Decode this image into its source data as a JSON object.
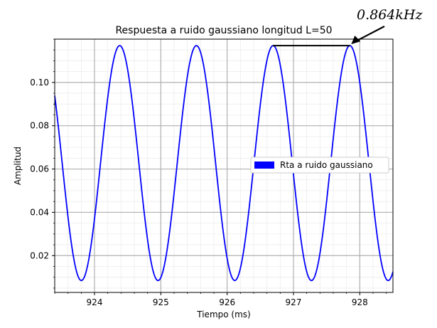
{
  "chart_data": {
    "type": "line",
    "title": "Respuesta a ruido gaussiano longitud L=50",
    "xlabel": "Tiempo (ms)",
    "ylabel": "Amplitud",
    "xlim": [
      923.4,
      928.5
    ],
    "ylim": [
      0.003,
      0.12
    ],
    "x_ticks": [
      924,
      925,
      926,
      927,
      928
    ],
    "x_tick_labels": [
      "924",
      "925",
      "926",
      "927",
      "928"
    ],
    "y_ticks": [
      0.02,
      0.04,
      0.06,
      0.08,
      0.1
    ],
    "y_tick_labels": [
      "0.02",
      "0.04",
      "0.06",
      "0.08",
      "0.10"
    ],
    "grid": true,
    "minor_grid": true,
    "legend_position": "center-right",
    "series": [
      {
        "name": "Rta a ruido gaussiano",
        "color": "#0000ff",
        "model": "sinusoid",
        "peaks_x": [
          924.38,
          925.54,
          926.69,
          927.85
        ],
        "troughs_x": [
          923.81,
          924.96,
          926.11,
          927.26,
          928.42
        ],
        "peak_y": 0.117,
        "trough_y": 0.0085
      }
    ],
    "annotation": {
      "text": "0.864kHz",
      "from_x": 926.69,
      "to_x": 927.85,
      "y": 0.117
    }
  },
  "colors": {
    "line": "#0000ff",
    "grid_major": "#b0b0b0",
    "grid_minor": "#ececec",
    "axes": "#000000"
  }
}
